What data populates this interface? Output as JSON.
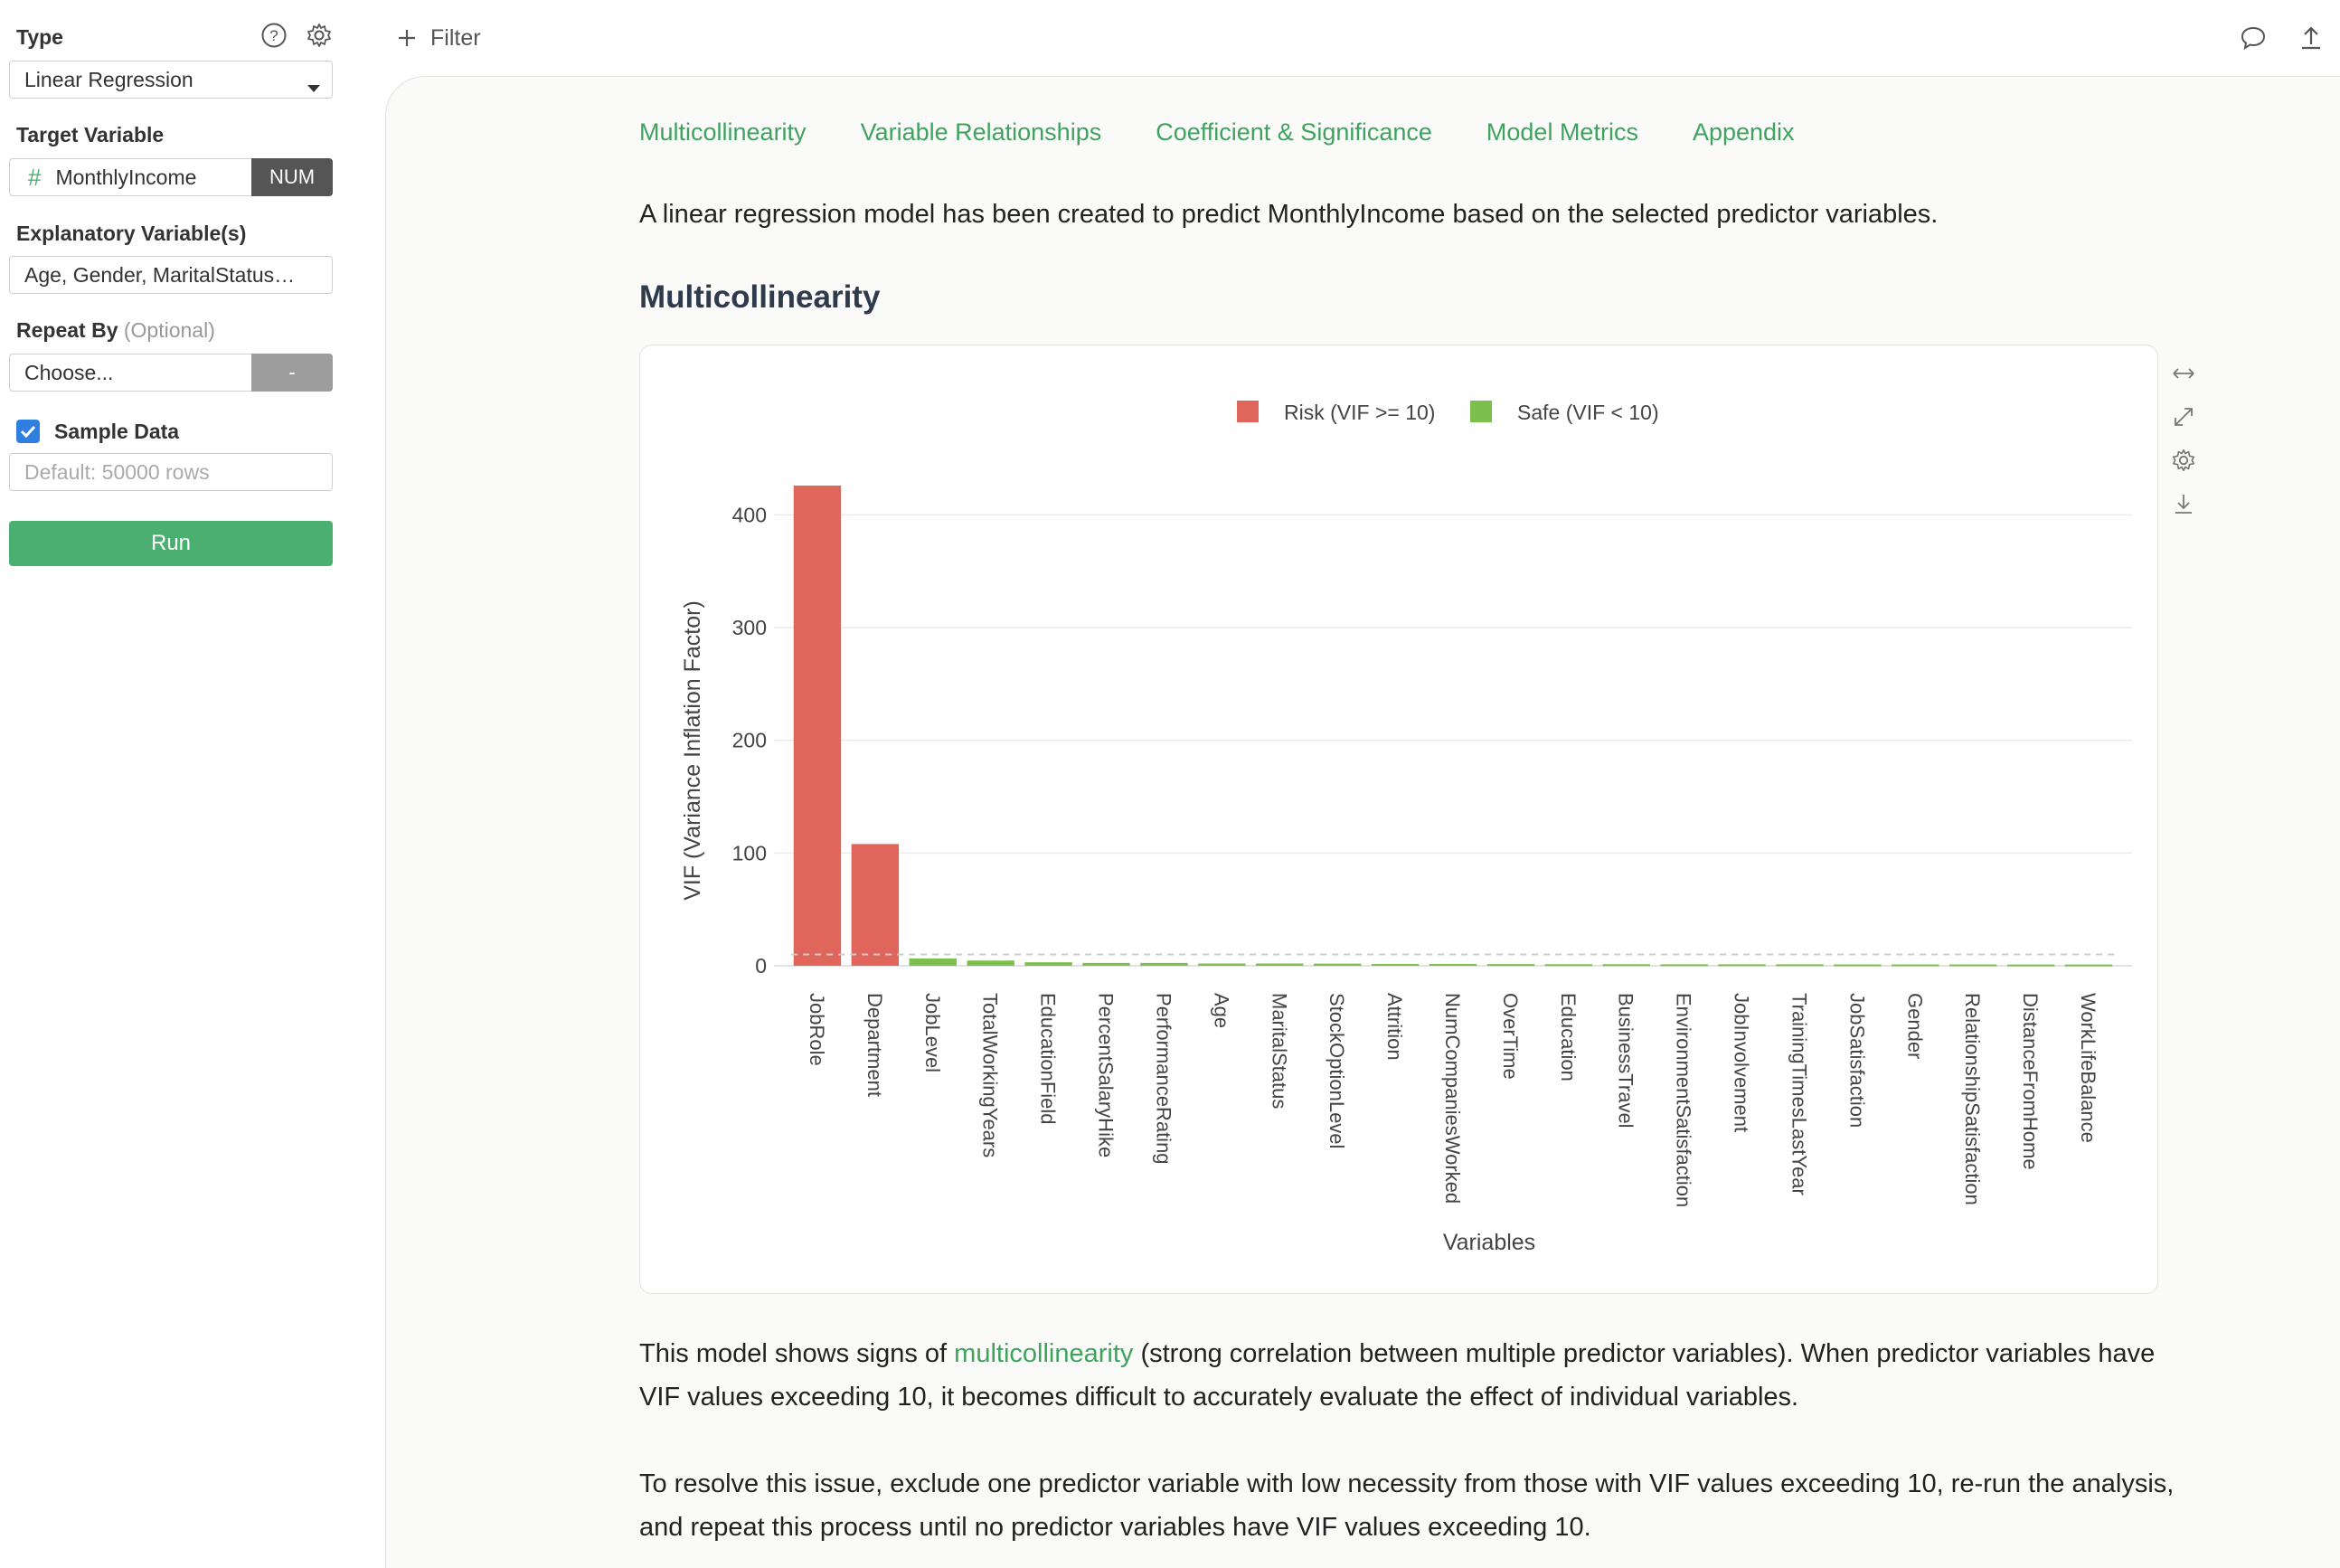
{
  "sidebar": {
    "type_label": "Type",
    "type_value": "Linear Regression",
    "target_label": "Target Variable",
    "target_value": "MonthlyIncome",
    "target_type": "NUM",
    "explanatory_label": "Explanatory Variable(s)",
    "explanatory_value": "Age, Gender, MaritalStatus…",
    "repeat_label": "Repeat By",
    "repeat_optional": "(Optional)",
    "repeat_placeholder": "Choose...",
    "repeat_button": "-",
    "sample_label": "Sample Data",
    "sample_checked": true,
    "sample_placeholder": "Default: 50000 rows",
    "run_label": "Run"
  },
  "topbar": {
    "filter_label": "Filter"
  },
  "main": {
    "tabs": [
      "Multicollinearity",
      "Variable Relationships",
      "Coefficient & Significance",
      "Model Metrics",
      "Appendix"
    ],
    "intro": "A linear regression model has been created to predict MonthlyIncome based on the selected predictor variables.",
    "section_title": "Multicollinearity",
    "para1_before": "This model shows signs of ",
    "para1_link": "multicollinearity",
    "para1_after": " (strong correlation between multiple predictor variables). When predictor variables have VIF values exceeding 10, it becomes difficult to accurately evaluate the effect of individual variables.",
    "para2": "To resolve this issue, exclude one predictor variable with low necessity from those with VIF values exceeding 10, re-run the analysis, and repeat this process until no predictor variables have VIF values exceeding 10."
  },
  "colors": {
    "accent_green": "#3fa35f",
    "run_button": "#4caf72",
    "risk": "#e0655a",
    "safe": "#7dbf4d"
  },
  "chart_data": {
    "type": "bar",
    "xlabel": "Variables",
    "ylabel": "VIF (Variance Inflation Factor)",
    "ylim": [
      0,
      430
    ],
    "yticks": [
      0,
      100,
      200,
      300,
      400
    ],
    "threshold": 10,
    "legend": [
      {
        "name": "Risk (VIF >= 10)",
        "color": "#e0655a"
      },
      {
        "name": "Safe (VIF < 10)",
        "color": "#7dbf4d"
      }
    ],
    "legend_position": "top-center",
    "grid": true,
    "categories": [
      "JobRole",
      "Department",
      "JobLevel",
      "TotalWorkingYears",
      "EducationField",
      "PercentSalaryHike",
      "PerformanceRating",
      "Age",
      "MaritalStatus",
      "StockOptionLevel",
      "Attrition",
      "NumCompaniesWorked",
      "OverTime",
      "Education",
      "BusinessTravel",
      "EnvironmentSatisfaction",
      "JobInvolvement",
      "TrainingTimesLastYear",
      "JobSatisfaction",
      "Gender",
      "RelationshipSatisfaction",
      "DistanceFromHome",
      "WorkLifeBalance"
    ],
    "values": [
      426,
      108,
      6.5,
      4.6,
      3.1,
      2.5,
      2.5,
      2.0,
      2.0,
      1.9,
      1.6,
      1.6,
      1.5,
      1.4,
      1.4,
      1.3,
      1.3,
      1.3,
      1.2,
      1.2,
      1.2,
      1.1,
      1.1
    ]
  }
}
